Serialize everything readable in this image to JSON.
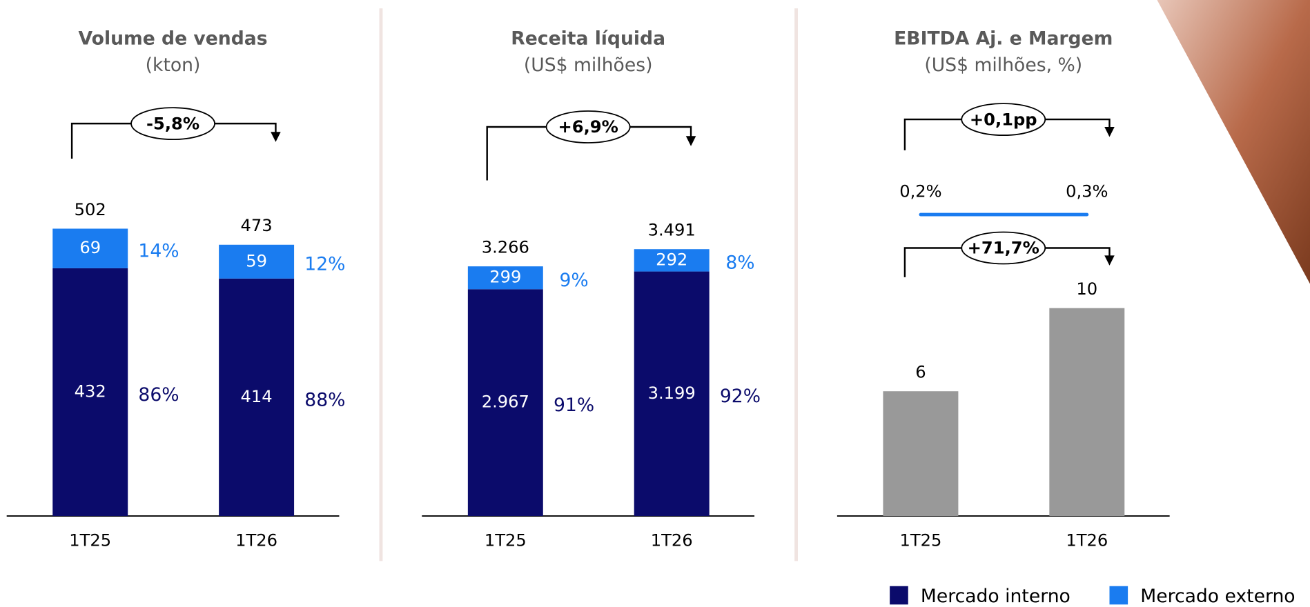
{
  "chart_data": [
    {
      "type": "stacked_bar",
      "title": "Volume de vendas",
      "subtitle": "(kton)",
      "categories": [
        "1T25",
        "1T26"
      ],
      "series": [
        {
          "name": "Mercado interno",
          "color": "#0b0b6b",
          "values": [
            432,
            414
          ],
          "shares": [
            86,
            88
          ],
          "share_labels": [
            "86%",
            "88%"
          ]
        },
        {
          "name": "Mercado externo",
          "color": "#1a7cf0",
          "values": [
            69,
            59
          ],
          "shares": [
            14,
            12
          ],
          "share_labels": [
            "14%",
            "12%"
          ]
        }
      ],
      "totals": {
        "values": [
          502,
          473
        ]
      },
      "annotation": "-5,8%",
      "ylim": [
        0,
        725
      ]
    },
    {
      "type": "stacked_bar",
      "title": "Receita líquida",
      "subtitle": "(US$ milhões)",
      "categories": [
        "1T25",
        "1T26"
      ],
      "series": [
        {
          "color": "#0b0b6b",
          "values": [
            2967,
            3199
          ],
          "value_labels": [
            "2.967",
            "3.199"
          ],
          "shares": [
            91,
            92
          ],
          "share_labels": [
            "91%",
            "92%"
          ]
        },
        {
          "color": "#1a7cf0",
          "values": [
            299,
            292
          ],
          "shares": [
            9,
            8
          ],
          "share_labels": [
            "9%",
            "8%"
          ]
        }
      ],
      "totals": {
        "values": [
          3266,
          3491
        ],
        "value_labels": [
          "3.266",
          "3.491"
        ]
      },
      "annotation": "+6,9%",
      "ylim": [
        0,
        5440
      ]
    },
    {
      "type": "bar",
      "title": "EBITDA Aj. e Margem",
      "subtitle": "(US$ milhões, %)",
      "categories": [
        "1T25",
        "1T26"
      ],
      "values": [
        6,
        10
      ],
      "color": "#999999",
      "margin": {
        "values": [
          0.2,
          0.3
        ],
        "value_labels": [
          "0,2%",
          "0,3%"
        ],
        "color": "#1a7cf0"
      },
      "annotations": [
        "+0,1pp",
        "+71,7%"
      ],
      "ylim": [
        0,
        20
      ]
    }
  ]
}
